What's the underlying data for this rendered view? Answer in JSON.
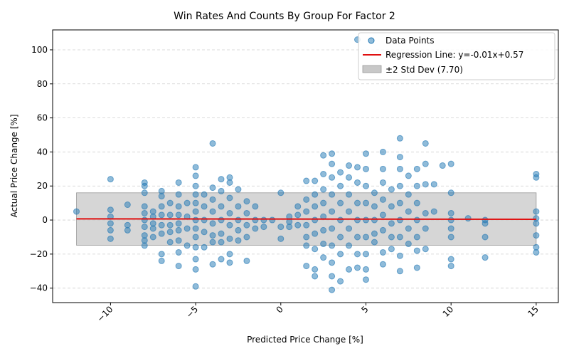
{
  "chart_data": {
    "type": "scatter",
    "title": "Win Rates And Counts By Group For Factor 2",
    "x_label": "Predicted Price Change [%]",
    "y_label": "Actual Price Change [%]",
    "xlim": [
      -13.4,
      16.3
    ],
    "ylim": [
      -48.5,
      111.7
    ],
    "xticks": [
      {
        "value": -10,
        "label": "−10"
      },
      {
        "value": -5,
        "label": "−5"
      },
      0,
      5,
      10,
      15
    ],
    "yticks": [
      {
        "value": -40,
        "label": "−40"
      },
      {
        "value": -20,
        "label": "−20"
      },
      0,
      20,
      40,
      60,
      80,
      100
    ],
    "grid": "y",
    "legend": "upper right",
    "series": [
      {
        "name": "Data Points",
        "color": "#1f77b4",
        "x": [
          -12,
          -10,
          -10,
          -10,
          -10,
          -10,
          -10,
          -9,
          -9,
          -9,
          -8,
          -8,
          -8,
          -8,
          -8,
          -8,
          -8,
          -8,
          -8,
          -8,
          -7.5,
          -7.5,
          -7.5,
          -7.5,
          -7.5,
          -7,
          -7,
          -7,
          -7,
          -7,
          -7,
          -7,
          -7,
          -6.5,
          -6.5,
          -6.5,
          -6.5,
          -6.5,
          -6,
          -6,
          -6,
          -6,
          -6,
          -6,
          -6,
          -6,
          -6,
          -5.5,
          -5.5,
          -5.5,
          -5.5,
          -5,
          -5,
          -5,
          -5,
          -5,
          -5,
          -5,
          -5,
          -5,
          -5,
          -5,
          -5,
          -5,
          -4.5,
          -4.5,
          -4.5,
          -4.5,
          -4.5,
          -4,
          -4,
          -4,
          -4,
          -4,
          -4,
          -4,
          -4,
          -3.5,
          -3.5,
          -3.5,
          -3.5,
          -3.5,
          -3.5,
          -3.5,
          -3,
          -3,
          -3,
          -3,
          -3,
          -3,
          -3,
          -3,
          -2.5,
          -2.5,
          -2.5,
          -2.5,
          -2.5,
          -2,
          -2,
          -2,
          -2,
          -2,
          -1.5,
          -1.5,
          -1.5,
          -1,
          -1,
          -0.5,
          0,
          0,
          0,
          0.5,
          0.5,
          0.5,
          1,
          1,
          1,
          1.5,
          1.5,
          1.5,
          1.5,
          1.5,
          1.5,
          1.5,
          2,
          2,
          2,
          2,
          2,
          2,
          2,
          2,
          2.5,
          2.5,
          2.5,
          2.5,
          2.5,
          2.5,
          2.5,
          2.5,
          3,
          3,
          3,
          3,
          3,
          3,
          3,
          3,
          3,
          3,
          3.5,
          3.5,
          3.5,
          3.5,
          3.5,
          3.5,
          3.5,
          4,
          4,
          4,
          4,
          4,
          4,
          4,
          4.5,
          4.5,
          4.5,
          4.5,
          4.5,
          4.5,
          4.5,
          4.5,
          5,
          5,
          5,
          5,
          5,
          5,
          5,
          5,
          5,
          5.5,
          5.5,
          5.5,
          5.5,
          5.5,
          6,
          6,
          6,
          6,
          6,
          6,
          6,
          6,
          6.5,
          6.5,
          6.5,
          6.5,
          6.5,
          7,
          7,
          7,
          7,
          7,
          7,
          7,
          7,
          7,
          7.5,
          7.5,
          7.5,
          7.5,
          7.5,
          8,
          8,
          8,
          8,
          8,
          8,
          8,
          8.5,
          8.5,
          8.5,
          8.5,
          8.5,
          8.5,
          9,
          9,
          9.5,
          10,
          10,
          10,
          10,
          10,
          10,
          10,
          10,
          11,
          12,
          12,
          12,
          12,
          15,
          15,
          15,
          15,
          15,
          15,
          15,
          15
        ],
        "values": [
          5,
          24,
          6,
          2,
          -2,
          -6,
          -11,
          9,
          -3,
          -6,
          22,
          20,
          16,
          8,
          4,
          0,
          -4,
          -9,
          -12,
          -15,
          5,
          2,
          -2,
          -5,
          -10,
          17,
          14,
          8,
          3,
          -3,
          -8,
          -20,
          -24,
          10,
          3,
          -3,
          -7,
          -13,
          22,
          15,
          8,
          3,
          -2,
          -6,
          -12,
          -19,
          -27,
          10,
          2,
          -5,
          -15,
          31,
          26,
          20,
          15,
          10,
          5,
          0,
          -5,
          -10,
          -16,
          -23,
          -29,
          -39,
          15,
          8,
          0,
          -7,
          -16,
          45,
          19,
          12,
          5,
          -2,
          -9,
          -13,
          -26,
          24,
          17,
          8,
          0,
          -8,
          -13,
          -23,
          25,
          22,
          13,
          4,
          -3,
          -11,
          -20,
          -25,
          18,
          8,
          0,
          -6,
          -12,
          11,
          4,
          -3,
          -10,
          -24,
          8,
          0,
          -5,
          0,
          -4,
          0,
          16,
          -4,
          -11,
          2,
          -1,
          -4,
          8,
          3,
          -3,
          23,
          12,
          5,
          -3,
          -10,
          -15,
          -27,
          23,
          15,
          8,
          0,
          -8,
          -17,
          -29,
          -33,
          38,
          27,
          18,
          10,
          2,
          -6,
          -14,
          -22,
          39,
          33,
          25,
          15,
          5,
          -5,
          -15,
          -25,
          -33,
          -41,
          28,
          20,
          10,
          0,
          -10,
          -20,
          -36,
          32,
          25,
          15,
          5,
          -5,
          -15,
          -29,
          106,
          31,
          22,
          10,
          0,
          -10,
          -20,
          -28,
          39,
          30,
          20,
          10,
          0,
          -10,
          -20,
          -29,
          -35,
          16,
          8,
          0,
          -8,
          -13,
          40,
          30,
          22,
          12,
          3,
          -6,
          -19,
          -26,
          18,
          8,
          -2,
          -10,
          -17,
          48,
          37,
          30,
          20,
          10,
          0,
          -10,
          -21,
          -30,
          26,
          15,
          5,
          -5,
          -14,
          30,
          20,
          10,
          0,
          -10,
          -18,
          -28,
          45,
          33,
          21,
          4,
          -5,
          -17,
          21,
          5,
          32,
          33,
          16,
          4,
          0,
          -5,
          -10,
          -23,
          -27,
          1,
          0,
          -2,
          -10,
          -22,
          27,
          25,
          5,
          1,
          -2,
          -9,
          -16,
          -19
        ]
      },
      {
        "name": "Regression Line: y=-0.01x+0.57",
        "color": "#e01010",
        "x": [
          -12,
          15
        ],
        "values": [
          0.69,
          0.42
        ]
      }
    ],
    "band": {
      "name": "±2 Std Dev (7.70)",
      "color": "#c8c8c8",
      "x": [
        -12,
        15
      ],
      "lower": -14.8,
      "upper": 16.0
    }
  }
}
